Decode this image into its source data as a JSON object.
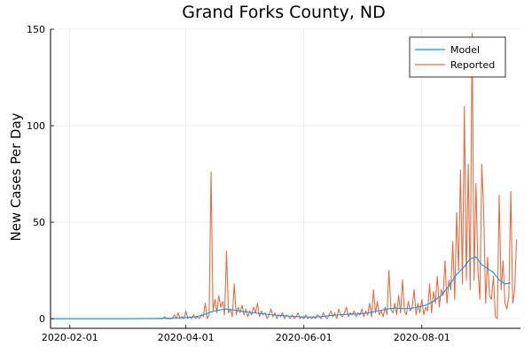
{
  "chart_data": {
    "type": "line",
    "title": "Grand Forks County, ND",
    "xlabel": "",
    "ylabel": "New Cases Per Day",
    "xlim": [
      "2020-01-22",
      "2020-09-21"
    ],
    "ylim": [
      -5,
      150
    ],
    "x_ticks": [
      "2020-02-01",
      "2020-04-01",
      "2020-06-01",
      "2020-08-01"
    ],
    "y_ticks": [
      0,
      50,
      100,
      150
    ],
    "grid": true,
    "legend_position": "top-right",
    "series": [
      {
        "name": "Model",
        "color": "#009AFA",
        "points": [
          [
            "2020-01-22",
            0
          ],
          [
            "2020-03-01",
            0
          ],
          [
            "2020-03-15",
            0.1
          ],
          [
            "2020-03-25",
            0.3
          ],
          [
            "2020-04-01",
            0.6
          ],
          [
            "2020-04-06",
            1
          ],
          [
            "2020-04-10",
            2
          ],
          [
            "2020-04-14",
            3.5
          ],
          [
            "2020-04-18",
            4.5
          ],
          [
            "2020-04-22",
            5
          ],
          [
            "2020-04-26",
            4.5
          ],
          [
            "2020-04-30",
            3.8
          ],
          [
            "2020-05-05",
            3.2
          ],
          [
            "2020-05-10",
            2.6
          ],
          [
            "2020-05-15",
            2
          ],
          [
            "2020-05-20",
            1.6
          ],
          [
            "2020-05-25",
            1.3
          ],
          [
            "2020-05-30",
            1
          ],
          [
            "2020-06-04",
            0.9
          ],
          [
            "2020-06-09",
            1
          ],
          [
            "2020-06-14",
            1.5
          ],
          [
            "2020-06-19",
            2
          ],
          [
            "2020-06-24",
            2.3
          ],
          [
            "2020-06-29",
            2.5
          ],
          [
            "2020-07-04",
            3
          ],
          [
            "2020-07-09",
            4
          ],
          [
            "2020-07-14",
            5
          ],
          [
            "2020-07-18",
            5.5
          ],
          [
            "2020-07-22",
            5.2
          ],
          [
            "2020-07-26",
            5.3
          ],
          [
            "2020-07-30",
            6
          ],
          [
            "2020-08-03",
            7
          ],
          [
            "2020-08-07",
            9
          ],
          [
            "2020-08-11",
            12
          ],
          [
            "2020-08-15",
            17
          ],
          [
            "2020-08-19",
            23
          ],
          [
            "2020-08-23",
            27
          ],
          [
            "2020-08-26",
            31
          ],
          [
            "2020-08-29",
            32
          ],
          [
            "2020-09-01",
            28
          ],
          [
            "2020-09-04",
            26
          ],
          [
            "2020-09-07",
            24
          ],
          [
            "2020-09-10",
            20
          ],
          [
            "2020-09-13",
            18
          ],
          [
            "2020-09-16",
            18.5
          ]
        ]
      },
      {
        "name": "Reported",
        "color": "#E26F46",
        "points": [
          [
            "2020-01-22",
            0
          ],
          [
            "2020-03-19",
            0
          ],
          [
            "2020-03-20",
            0
          ],
          [
            "2020-03-21",
            1
          ],
          [
            "2020-03-22",
            0
          ],
          [
            "2020-03-25",
            0
          ],
          [
            "2020-03-26",
            2
          ],
          [
            "2020-03-27",
            0
          ],
          [
            "2020-03-28",
            3
          ],
          [
            "2020-03-29",
            0
          ],
          [
            "2020-03-30",
            1
          ],
          [
            "2020-03-31",
            0
          ],
          [
            "2020-04-01",
            4
          ],
          [
            "2020-04-02",
            0
          ],
          [
            "2020-04-03",
            1
          ],
          [
            "2020-04-04",
            0
          ],
          [
            "2020-04-05",
            2
          ],
          [
            "2020-04-06",
            0
          ],
          [
            "2020-04-07",
            1
          ],
          [
            "2020-04-08",
            0
          ],
          [
            "2020-04-09",
            2
          ],
          [
            "2020-04-10",
            1
          ],
          [
            "2020-04-11",
            8
          ],
          [
            "2020-04-12",
            0
          ],
          [
            "2020-04-13",
            2
          ],
          [
            "2020-04-14",
            76
          ],
          [
            "2020-04-15",
            4
          ],
          [
            "2020-04-16",
            10
          ],
          [
            "2020-04-17",
            3
          ],
          [
            "2020-04-18",
            12
          ],
          [
            "2020-04-19",
            6
          ],
          [
            "2020-04-20",
            9
          ],
          [
            "2020-04-21",
            2
          ],
          [
            "2020-04-22",
            35
          ],
          [
            "2020-04-23",
            3
          ],
          [
            "2020-04-24",
            5
          ],
          [
            "2020-04-25",
            1
          ],
          [
            "2020-04-26",
            18
          ],
          [
            "2020-04-27",
            2
          ],
          [
            "2020-04-28",
            6
          ],
          [
            "2020-04-29",
            3
          ],
          [
            "2020-04-30",
            7
          ],
          [
            "2020-05-01",
            2
          ],
          [
            "2020-05-02",
            5
          ],
          [
            "2020-05-03",
            1
          ],
          [
            "2020-05-04",
            4
          ],
          [
            "2020-05-05",
            2
          ],
          [
            "2020-05-06",
            6
          ],
          [
            "2020-05-07",
            3
          ],
          [
            "2020-05-08",
            8
          ],
          [
            "2020-05-09",
            1
          ],
          [
            "2020-05-10",
            4
          ],
          [
            "2020-05-11",
            2
          ],
          [
            "2020-05-12",
            3
          ],
          [
            "2020-05-13",
            0
          ],
          [
            "2020-05-14",
            2
          ],
          [
            "2020-05-15",
            5
          ],
          [
            "2020-05-16",
            1
          ],
          [
            "2020-05-17",
            3
          ],
          [
            "2020-05-18",
            0
          ],
          [
            "2020-05-19",
            2
          ],
          [
            "2020-05-20",
            1
          ],
          [
            "2020-05-21",
            3
          ],
          [
            "2020-05-22",
            0
          ],
          [
            "2020-05-23",
            2
          ],
          [
            "2020-05-24",
            1
          ],
          [
            "2020-05-25",
            0
          ],
          [
            "2020-05-26",
            2
          ],
          [
            "2020-05-27",
            0
          ],
          [
            "2020-05-28",
            1
          ],
          [
            "2020-05-29",
            3
          ],
          [
            "2020-05-30",
            0
          ],
          [
            "2020-05-31",
            1
          ],
          [
            "2020-06-01",
            0
          ],
          [
            "2020-06-02",
            2
          ],
          [
            "2020-06-03",
            0
          ],
          [
            "2020-06-04",
            1
          ],
          [
            "2020-06-05",
            0
          ],
          [
            "2020-06-06",
            1
          ],
          [
            "2020-06-07",
            0
          ],
          [
            "2020-06-08",
            2
          ],
          [
            "2020-06-09",
            1
          ],
          [
            "2020-06-10",
            0
          ],
          [
            "2020-06-11",
            3
          ],
          [
            "2020-06-12",
            1
          ],
          [
            "2020-06-13",
            0
          ],
          [
            "2020-06-14",
            2
          ],
          [
            "2020-06-15",
            4
          ],
          [
            "2020-06-16",
            1
          ],
          [
            "2020-06-17",
            3
          ],
          [
            "2020-06-18",
            0
          ],
          [
            "2020-06-19",
            5
          ],
          [
            "2020-06-20",
            2
          ],
          [
            "2020-06-21",
            1
          ],
          [
            "2020-06-22",
            3
          ],
          [
            "2020-06-23",
            6
          ],
          [
            "2020-06-24",
            1
          ],
          [
            "2020-06-25",
            3
          ],
          [
            "2020-06-26",
            2
          ],
          [
            "2020-06-27",
            4
          ],
          [
            "2020-06-28",
            1
          ],
          [
            "2020-06-29",
            3
          ],
          [
            "2020-06-30",
            2
          ],
          [
            "2020-07-01",
            5
          ],
          [
            "2020-07-02",
            1
          ],
          [
            "2020-07-03",
            4
          ],
          [
            "2020-07-04",
            2
          ],
          [
            "2020-07-05",
            8
          ],
          [
            "2020-07-06",
            1
          ],
          [
            "2020-07-07",
            15
          ],
          [
            "2020-07-08",
            3
          ],
          [
            "2020-07-09",
            9
          ],
          [
            "2020-07-10",
            2
          ],
          [
            "2020-07-11",
            4
          ],
          [
            "2020-07-12",
            1
          ],
          [
            "2020-07-13",
            6
          ],
          [
            "2020-07-14",
            2
          ],
          [
            "2020-07-15",
            25
          ],
          [
            "2020-07-16",
            5
          ],
          [
            "2020-07-17",
            3
          ],
          [
            "2020-07-18",
            8
          ],
          [
            "2020-07-19",
            2
          ],
          [
            "2020-07-20",
            12
          ],
          [
            "2020-07-21",
            3
          ],
          [
            "2020-07-22",
            20
          ],
          [
            "2020-07-23",
            4
          ],
          [
            "2020-07-24",
            2
          ],
          [
            "2020-07-25",
            9
          ],
          [
            "2020-07-26",
            4
          ],
          [
            "2020-07-27",
            6
          ],
          [
            "2020-07-28",
            15
          ],
          [
            "2020-07-29",
            2
          ],
          [
            "2020-07-30",
            8
          ],
          [
            "2020-07-31",
            3
          ],
          [
            "2020-08-01",
            10
          ],
          [
            "2020-08-02",
            2
          ],
          [
            "2020-08-03",
            6
          ],
          [
            "2020-08-04",
            4
          ],
          [
            "2020-08-05",
            18
          ],
          [
            "2020-08-06",
            3
          ],
          [
            "2020-08-07",
            14
          ],
          [
            "2020-08-08",
            8
          ],
          [
            "2020-08-09",
            22
          ],
          [
            "2020-08-10",
            6
          ],
          [
            "2020-08-11",
            15
          ],
          [
            "2020-08-12",
            12
          ],
          [
            "2020-08-13",
            30
          ],
          [
            "2020-08-14",
            8
          ],
          [
            "2020-08-15",
            20
          ],
          [
            "2020-08-16",
            15
          ],
          [
            "2020-08-17",
            40
          ],
          [
            "2020-08-18",
            10
          ],
          [
            "2020-08-19",
            55
          ],
          [
            "2020-08-20",
            25
          ],
          [
            "2020-08-21",
            77
          ],
          [
            "2020-08-22",
            18
          ],
          [
            "2020-08-23",
            110
          ],
          [
            "2020-08-24",
            20
          ],
          [
            "2020-08-25",
            80
          ],
          [
            "2020-08-26",
            15
          ],
          [
            "2020-08-27",
            148
          ],
          [
            "2020-08-28",
            20
          ],
          [
            "2020-08-29",
            70
          ],
          [
            "2020-08-30",
            25
          ],
          [
            "2020-08-31",
            10
          ],
          [
            "2020-09-01",
            80
          ],
          [
            "2020-09-02",
            55
          ],
          [
            "2020-09-03",
            8
          ],
          [
            "2020-09-04",
            32
          ],
          [
            "2020-09-05",
            12
          ],
          [
            "2020-09-06",
            10
          ],
          [
            "2020-09-07",
            22
          ],
          [
            "2020-09-08",
            1
          ],
          [
            "2020-09-09",
            0
          ],
          [
            "2020-09-10",
            64
          ],
          [
            "2020-09-11",
            15
          ],
          [
            "2020-09-12",
            30
          ],
          [
            "2020-09-13",
            8
          ],
          [
            "2020-09-14",
            5
          ],
          [
            "2020-09-15",
            12
          ],
          [
            "2020-09-16",
            66
          ],
          [
            "2020-09-17",
            8
          ],
          [
            "2020-09-18",
            15
          ],
          [
            "2020-09-19",
            41
          ]
        ]
      }
    ]
  }
}
